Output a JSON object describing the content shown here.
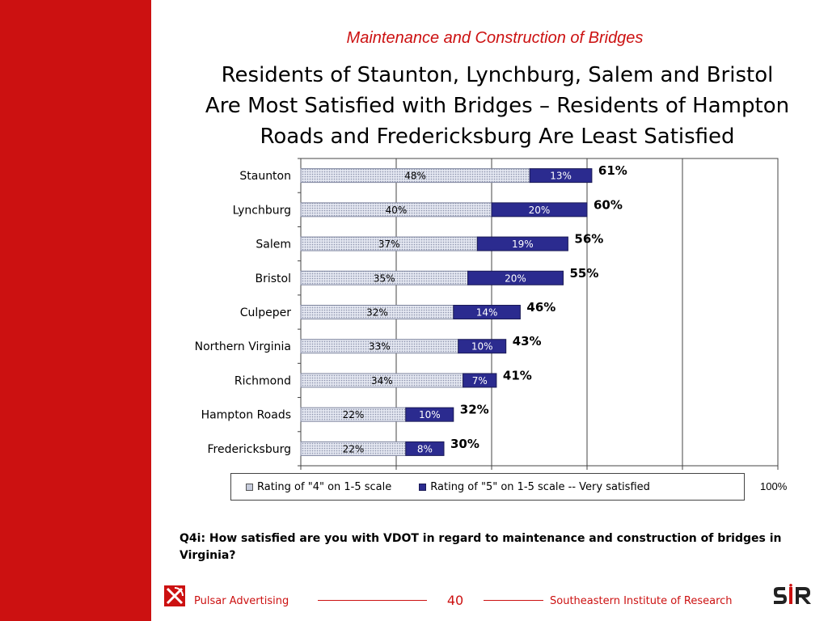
{
  "slide": {
    "section_title": "Maintenance and Construction of Bridges",
    "headline_lines": [
      "Residents of Staunton, Lynchburg, Salem and Bristol",
      "Are Most Satisfied with Bridges – Residents of Hampton",
      "Roads and Fredericksburg Are Least Satisfied"
    ],
    "question": "Q4i:  How satisfied are you with VDOT in regard to maintenance and construction of bridges in Virginia?",
    "axis_max_label": "100%",
    "page_number": "40",
    "footer_left": "Pulsar Advertising",
    "footer_right": "Southeastern Institute of Research",
    "colors": {
      "accent_red": "#cc1111",
      "bar_4": "#dfe3ef",
      "bar_5": "#2b2b8f"
    }
  },
  "chart_data": {
    "type": "bar",
    "orientation": "horizontal",
    "stacked": true,
    "categories": [
      "Staunton",
      "Lynchburg",
      "Salem",
      "Bristol",
      "Culpeper",
      "Northern Virginia",
      "Richmond",
      "Hampton Roads",
      "Fredericksburg"
    ],
    "series": [
      {
        "name": "Rating of \"4\" on 1-5 scale",
        "values": [
          48,
          40,
          37,
          35,
          32,
          33,
          34,
          22,
          22
        ],
        "labels": [
          "48%",
          "40%",
          "37%",
          "35%",
          "32%",
          "33%",
          "34%",
          "22%",
          "22%"
        ]
      },
      {
        "name": "Rating of \"5\" on 1-5 scale -- Very satisfied",
        "values": [
          13,
          20,
          19,
          20,
          14,
          10,
          7,
          10,
          8
        ],
        "labels": [
          "13%",
          "20%",
          "19%",
          "20%",
          "14%",
          "10%",
          "7%",
          "10%",
          "8%"
        ]
      }
    ],
    "totals": [
      61,
      60,
      56,
      55,
      46,
      43,
      41,
      32,
      30
    ],
    "total_labels": [
      "61%",
      "60%",
      "56%",
      "55%",
      "46%",
      "43%",
      "41%",
      "32%",
      "30%"
    ],
    "xlim": [
      0,
      100
    ],
    "gridlines": true,
    "legend_position": "bottom"
  }
}
